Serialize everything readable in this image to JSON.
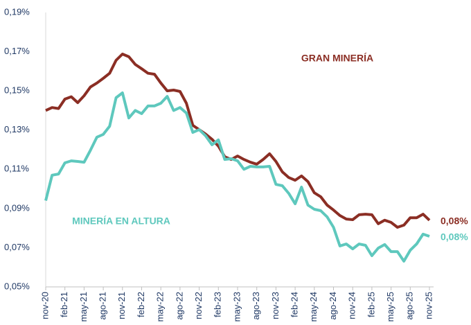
{
  "chart_data": {
    "type": "line",
    "categories": [
      "nov-20",
      null,
      null,
      "feb-21",
      null,
      null,
      "may-21",
      null,
      null,
      "ago-21",
      null,
      null,
      "nov-21",
      null,
      null,
      "feb-22",
      null,
      null,
      "may-22",
      null,
      null,
      "ago-22",
      null,
      null,
      "nov-22",
      null,
      null,
      "feb-23",
      null,
      null,
      "may-23",
      null,
      null,
      "ago-23",
      null,
      null,
      "nov-23",
      null,
      null,
      "feb-24",
      null,
      null,
      "may-24",
      null,
      null,
      "ago-24",
      null,
      null,
      "nov-24",
      null,
      null,
      "feb-25",
      null,
      null,
      "may-25",
      null,
      null,
      "ago-25",
      null,
      null,
      "nov-25"
    ],
    "series": [
      {
        "name": "GRAN MINERÍA",
        "color": "#8b2e24",
        "values": [
          0.14,
          0.1415,
          0.141,
          0.1458,
          0.147,
          0.144,
          0.1475,
          0.152,
          0.154,
          0.1564,
          0.159,
          0.1656,
          0.1688,
          0.1674,
          0.1635,
          0.1613,
          0.159,
          0.1585,
          0.154,
          0.15,
          0.1504,
          0.1497,
          0.1437,
          0.1324,
          0.1302,
          0.128,
          0.1253,
          0.1218,
          0.1164,
          0.115,
          0.1168,
          0.115,
          0.1136,
          0.1126,
          0.115,
          0.1179,
          0.114,
          0.1087,
          0.1058,
          0.1044,
          0.1066,
          0.1037,
          0.098,
          0.096,
          0.0917,
          0.0892,
          0.0864,
          0.0846,
          0.0843,
          0.0868,
          0.0871,
          0.0868,
          0.0822,
          0.084,
          0.0829,
          0.0804,
          0.0815,
          0.0853,
          0.0853,
          0.0871,
          0.084
        ],
        "value_labels": [
          null,
          null,
          null,
          null,
          null,
          null,
          null,
          null,
          null,
          null,
          null,
          null,
          null,
          null,
          null,
          null,
          null,
          null,
          null,
          null,
          null,
          null,
          null,
          null,
          null,
          null,
          null,
          null,
          null,
          null,
          null,
          null,
          null,
          null,
          null,
          null,
          null,
          null,
          null,
          null,
          null,
          null,
          null,
          null,
          null,
          null,
          null,
          null,
          null,
          null,
          null,
          null,
          null,
          null,
          null,
          null,
          null,
          null,
          null,
          null,
          "0,08%"
        ]
      },
      {
        "name": "MINERÍA EN ALTURA",
        "color": "#5ec8bd",
        "values": [
          0.094,
          0.107,
          0.1076,
          0.1133,
          0.1143,
          0.114,
          0.1136,
          0.1197,
          0.1264,
          0.1278,
          0.132,
          0.1465,
          0.149,
          0.1362,
          0.14,
          0.1384,
          0.1423,
          0.1423,
          0.1437,
          0.1472,
          0.14,
          0.1415,
          0.1387,
          0.1288,
          0.1302,
          0.1271,
          0.1225,
          0.125,
          0.115,
          0.1154,
          0.1143,
          0.11,
          0.1115,
          0.1112,
          0.1112,
          0.1115,
          0.1023,
          0.1016,
          0.0977,
          0.0924,
          0.1009,
          0.0917,
          0.0896,
          0.0889,
          0.0857,
          0.0804,
          0.0709,
          0.0719,
          0.0694,
          0.0719,
          0.0712,
          0.0659,
          0.0698,
          0.0716,
          0.068,
          0.068,
          0.0631,
          0.0687,
          0.0719,
          0.0769,
          0.0758
        ],
        "value_labels": [
          null,
          null,
          null,
          null,
          null,
          null,
          null,
          null,
          null,
          null,
          null,
          null,
          null,
          null,
          null,
          null,
          null,
          null,
          null,
          null,
          null,
          null,
          null,
          null,
          null,
          null,
          null,
          null,
          null,
          null,
          null,
          null,
          null,
          null,
          null,
          null,
          null,
          null,
          null,
          null,
          null,
          null,
          null,
          null,
          null,
          null,
          null,
          null,
          null,
          null,
          null,
          null,
          null,
          null,
          null,
          null,
          null,
          null,
          null,
          null,
          "0,08%"
        ]
      }
    ],
    "ylim": [
      0.05,
      0.19
    ],
    "yticks": [
      {
        "value": 0.05,
        "label": "0,05%"
      },
      {
        "value": 0.07,
        "label": "0,07%"
      },
      {
        "value": 0.09,
        "label": "0,09%"
      },
      {
        "value": 0.11,
        "label": "0,11%"
      },
      {
        "value": 0.13,
        "label": "0,13%"
      },
      {
        "value": 0.15,
        "label": "0,15%"
      },
      {
        "value": 0.17,
        "label": "0,17%"
      },
      {
        "value": 0.19,
        "label": "0,19%"
      }
    ],
    "grid": false
  }
}
